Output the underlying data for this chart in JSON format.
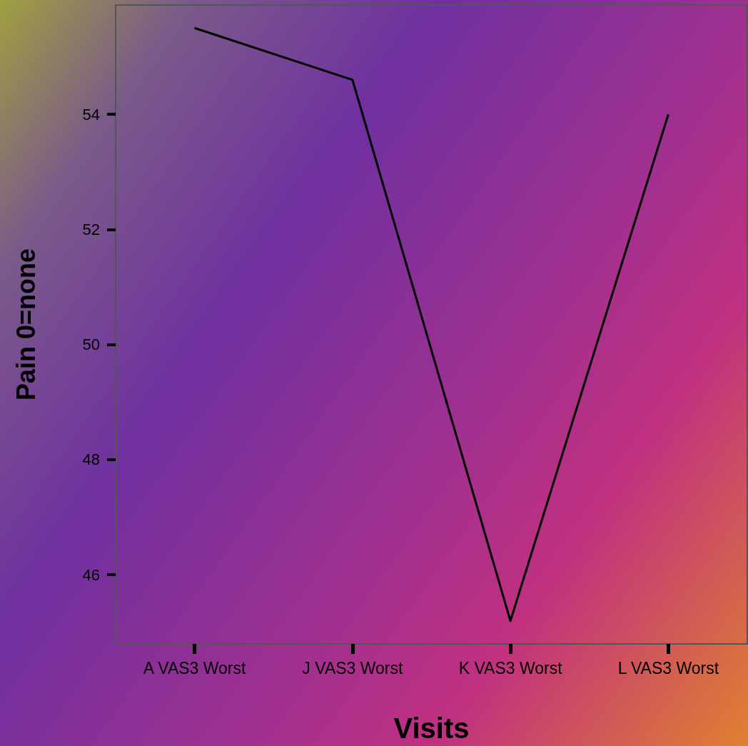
{
  "chart_data": {
    "type": "line",
    "xlabel": "Visits",
    "ylabel": "Pain 0=none",
    "categories": [
      "A VAS3 Worst",
      "J VAS3 Worst",
      "K VAS3 Worst",
      "L VAS3 Worst"
    ],
    "series": [
      {
        "color": "#000000",
        "values": [
          55.5,
          54.6,
          45.2,
          54.0
        ]
      }
    ],
    "ylim": [
      44.8,
      55.9
    ],
    "yticks": [
      46,
      48,
      50,
      52,
      54
    ],
    "grid": false,
    "marker": "none",
    "line_style": "solid"
  }
}
